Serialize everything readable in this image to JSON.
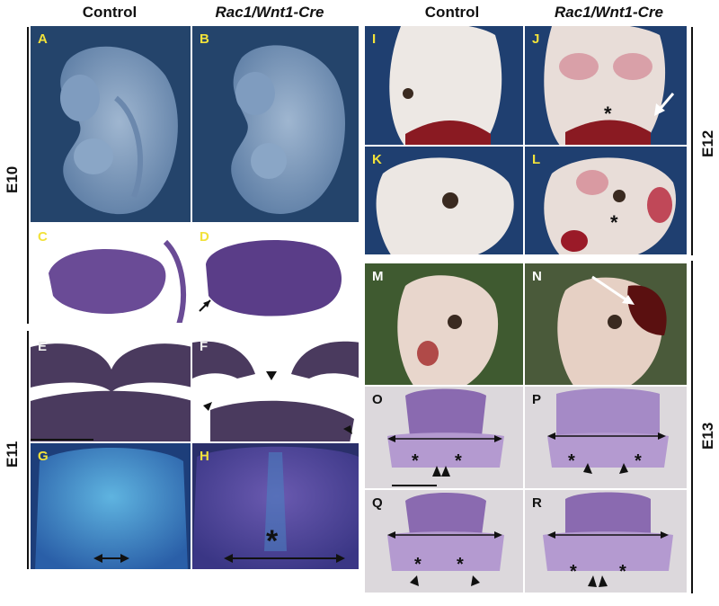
{
  "headers": {
    "left_control": "Control",
    "left_mutant": "Rac1/Wnt1-Cre",
    "right_control": "Control",
    "right_mutant": "Rac1/Wnt1-Cre"
  },
  "stages": {
    "e10": "E10",
    "e11": "E11",
    "e12": "E12",
    "e13": "E13"
  },
  "panels": {
    "A": "A",
    "B": "B",
    "C": "C",
    "D": "D",
    "E": "E",
    "F": "F",
    "G": "G",
    "H": "H",
    "I": "I",
    "J": "J",
    "K": "K",
    "L": "L",
    "M": "M",
    "N": "N",
    "O": "O",
    "P": "P",
    "Q": "Q",
    "R": "R"
  },
  "markers": {
    "asterisk": "*"
  },
  "colors": {
    "embryo_bg": "#24446b",
    "histology_bg": "#ffffff",
    "stain": "#5a3d88",
    "e13_bg": "#d9d6d8",
    "label_yellow": "#f2e23a"
  }
}
